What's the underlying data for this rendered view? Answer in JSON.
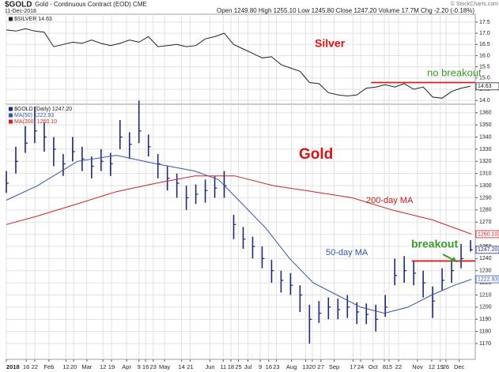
{
  "header": {
    "symbol": "$GOLD",
    "title": "Gold - Continuous Contract (EOD) CME",
    "date": "11-Dec-2018",
    "quote": "Open 1249.80 High 1255.10 Low 1245.80 Close 1247.20 Volume 17.7M Chg -2.20 (-0.18%)",
    "credit": "© StockCharts.com"
  },
  "chart_data": [
    {
      "type": "line",
      "xlim": [
        0,
        49.5
      ],
      "ylim": [
        13.83,
        17.85
      ],
      "grid": true,
      "yticks": [
        {
          "value": 14,
          "label": "14.0"
        },
        14.5,
        {
          "value": 15,
          "label": "15.0"
        },
        15.5,
        {
          "value": 16,
          "label": "16.0"
        },
        16.5,
        {
          "value": 17,
          "label": "17.0"
        },
        17.5
      ],
      "series": [
        {
          "name": "$SILVER 14.63",
          "color": "#222222",
          "x": [
            0,
            1,
            2,
            3,
            4,
            5,
            6,
            7,
            8,
            9,
            10,
            11,
            12,
            13,
            14,
            15,
            16,
            17,
            18,
            19,
            20,
            21,
            22,
            23,
            24,
            25,
            26,
            27,
            28,
            29,
            30,
            31,
            32,
            33,
            34,
            35,
            36,
            37,
            38,
            39,
            40,
            41,
            42,
            43,
            44,
            45,
            46,
            47,
            48,
            49
          ],
          "values": [
            17.15,
            17.1,
            17.2,
            17.1,
            17.05,
            16.4,
            16.5,
            16.6,
            16.55,
            16.7,
            16.55,
            16.45,
            16.55,
            16.7,
            16.6,
            16.85,
            16.4,
            16.45,
            16.5,
            16.4,
            16.45,
            16.75,
            16.85,
            17.0,
            16.5,
            16.3,
            16.1,
            15.9,
            15.95,
            15.6,
            15.45,
            15.3,
            14.8,
            14.75,
            14.35,
            14.25,
            14.2,
            14.25,
            14.55,
            14.6,
            14.7,
            14.6,
            14.75,
            14.5,
            14.6,
            14.15,
            14.1,
            14.4,
            14.55,
            14.63
          ]
        }
      ],
      "price_tags": [
        {
          "value": 14.63,
          "label": "14.63",
          "color": "#222222"
        }
      ],
      "hlines": [
        {
          "value": 14.8,
          "x": [
            38.5,
            49.5
          ],
          "color": "#d42020"
        }
      ],
      "annotations": [
        {
          "text": "Silver",
          "color": "#dd1111"
        },
        {
          "text": "no breakout",
          "color": "#3a9a2a"
        }
      ]
    },
    {
      "type": "ohlc",
      "xlim": [
        0,
        49.5
      ],
      "ylim": [
        1157,
        1367
      ],
      "grid": true,
      "yticks": [
        1170,
        1180,
        1190,
        1200,
        1210,
        1220,
        1230,
        1240,
        1250,
        1260,
        1270,
        1280,
        1290,
        1300,
        1310,
        1320,
        1330,
        1340,
        1350,
        1360
      ],
      "xticks": [
        {
          "value": 0,
          "label": "2018"
        },
        {
          "value": 2.1,
          "label": "16"
        },
        {
          "value": 3,
          "label": "22"
        },
        {
          "value": 4.5,
          "label": "Feb"
        },
        {
          "value": 6.3,
          "label": "12"
        },
        {
          "value": 7.1,
          "label": "20"
        },
        {
          "value": 8.5,
          "label": "Mar"
        },
        {
          "value": 10.2,
          "label": "12"
        },
        {
          "value": 11.1,
          "label": "19"
        },
        {
          "value": 12.7,
          "label": "Apr"
        },
        {
          "value": 14,
          "label": "9"
        },
        {
          "value": 14.7,
          "label": "16"
        },
        {
          "value": 15.5,
          "label": "23"
        },
        {
          "value": 16.7,
          "label": "May"
        },
        {
          "value": 18.5,
          "label": "14"
        },
        {
          "value": 19.4,
          "label": "21"
        },
        {
          "value": 21.5,
          "label": "Jun"
        },
        {
          "value": 22.9,
          "label": "11"
        },
        {
          "value": 23.7,
          "label": "18"
        },
        {
          "value": 24.5,
          "label": "25"
        },
        {
          "value": 25.5,
          "label": "Jul"
        },
        {
          "value": 26.8,
          "label": "9"
        },
        {
          "value": 27.7,
          "label": "16"
        },
        {
          "value": 28.5,
          "label": "23"
        },
        {
          "value": 30.1,
          "label": "Aug"
        },
        {
          "value": 31.6,
          "label": "13"
        },
        {
          "value": 32.3,
          "label": "20"
        },
        {
          "value": 33.2,
          "label": "27"
        },
        {
          "value": 34.6,
          "label": "Sep"
        },
        {
          "value": 36.6,
          "label": "17"
        },
        {
          "value": 37.4,
          "label": "24"
        },
        {
          "value": 38.7,
          "label": "Oct"
        },
        {
          "value": 39.9,
          "label": "8"
        },
        {
          "value": 40.4,
          "label": "15"
        },
        {
          "value": 41.4,
          "label": "22"
        },
        {
          "value": 43.4,
          "label": "Nov"
        },
        {
          "value": 44.9,
          "label": "12"
        },
        {
          "value": 45.8,
          "label": "19"
        },
        {
          "value": 46.4,
          "label": "26"
        },
        {
          "value": 47.8,
          "label": "Dec"
        }
      ],
      "series": [
        {
          "name": "$GOLD (Daily) 1247.20",
          "color": "#1c2a7a",
          "x": [
            0,
            1,
            2,
            3,
            4,
            5,
            6,
            7,
            8,
            9,
            10,
            11,
            12,
            13,
            14,
            15,
            16,
            17,
            18,
            19,
            20,
            21,
            22,
            23,
            24,
            25,
            26,
            27,
            28,
            29,
            30,
            31,
            32,
            33,
            34,
            35,
            36,
            37,
            38,
            39,
            40,
            41,
            42,
            43,
            44,
            45,
            46,
            47,
            48,
            49
          ],
          "high": [
            1312,
            1332,
            1349,
            1365,
            1352,
            1340,
            1326,
            1340,
            1332,
            1324,
            1330,
            1327,
            1354,
            1344,
            1370,
            1342,
            1326,
            1316,
            1310,
            1300,
            1301,
            1305,
            1308,
            1312,
            1276,
            1266,
            1258,
            1250,
            1239,
            1230,
            1228,
            1218,
            1202,
            1205,
            1208,
            1207,
            1210,
            1204,
            1203,
            1202,
            1210,
            1240,
            1242,
            1238,
            1230,
            1217,
            1232,
            1240,
            1252,
            1255.1
          ],
          "low": [
            1294,
            1310,
            1327,
            1335,
            1328,
            1316,
            1308,
            1320,
            1312,
            1306,
            1312,
            1308,
            1330,
            1322,
            1335,
            1324,
            1306,
            1296,
            1290,
            1280,
            1285,
            1286,
            1290,
            1290,
            1256,
            1248,
            1240,
            1232,
            1220,
            1212,
            1210,
            1196,
            1170,
            1187,
            1190,
            1190,
            1191,
            1186,
            1186,
            1180,
            1192,
            1218,
            1220,
            1218,
            1208,
            1191,
            1214,
            1220,
            1232,
            1245.8
          ],
          "values": [
            1302,
            1320,
            1335,
            1345,
            1340,
            1330,
            1318,
            1328,
            1322,
            1316,
            1320,
            1318,
            1340,
            1334,
            1345,
            1332,
            1318,
            1306,
            1302,
            1290,
            1293,
            1296,
            1298,
            1300,
            1268,
            1256,
            1250,
            1240,
            1230,
            1222,
            1218,
            1210,
            1190,
            1195,
            1200,
            1198,
            1200,
            1196,
            1194,
            1190,
            1200,
            1226,
            1230,
            1228,
            1220,
            1205,
            1222,
            1230,
            1240,
            1247.2
          ]
        },
        {
          "name": "MA(50) 1222.93",
          "color": "#3355aa",
          "type": "line",
          "x": [
            0,
            3.3,
            7.5,
            11.6,
            15.8,
            19.9,
            22.4,
            24.9,
            27.4,
            29.9,
            32.4,
            34.9,
            37.4,
            39.9,
            42.4,
            44.9,
            47.3,
            49.1
          ],
          "values": [
            1288,
            1300,
            1320,
            1325,
            1318,
            1312,
            1305,
            1285,
            1265,
            1240,
            1220,
            1210,
            1200,
            1195,
            1200,
            1210,
            1218,
            1222.93
          ]
        },
        {
          "name": "MA(200) 1260.10",
          "color": "#cc2222",
          "type": "line",
          "x": [
            0,
            3.3,
            7.5,
            11.6,
            15.8,
            19.9,
            24.1,
            28.2,
            32.4,
            36.5,
            40.7,
            44.9,
            49.1
          ],
          "values": [
            1268,
            1275,
            1285,
            1295,
            1302,
            1308,
            1308,
            1300,
            1295,
            1290,
            1280,
            1272,
            1260.1
          ]
        }
      ],
      "price_tags": [
        {
          "value": 1260.1,
          "label": "1260.10",
          "color": "#cc2222"
        },
        {
          "value": 1247.2,
          "label": "1247.20",
          "color": "#1c2a7a"
        },
        {
          "value": 1222.93,
          "label": "1222.93",
          "color": "#3355aa"
        }
      ],
      "hlines": [
        {
          "value": 1238,
          "x": [
            42.8,
            49.5
          ],
          "color": "#d42020"
        }
      ],
      "annotations": [
        {
          "text": "Gold",
          "color": "#dd1111"
        },
        {
          "text": "200-day MA",
          "color": "#cc1111"
        },
        {
          "text": "50-day MA",
          "color": "#3355aa"
        },
        {
          "text": "breakout",
          "color": "#3a9a2a"
        }
      ]
    }
  ]
}
